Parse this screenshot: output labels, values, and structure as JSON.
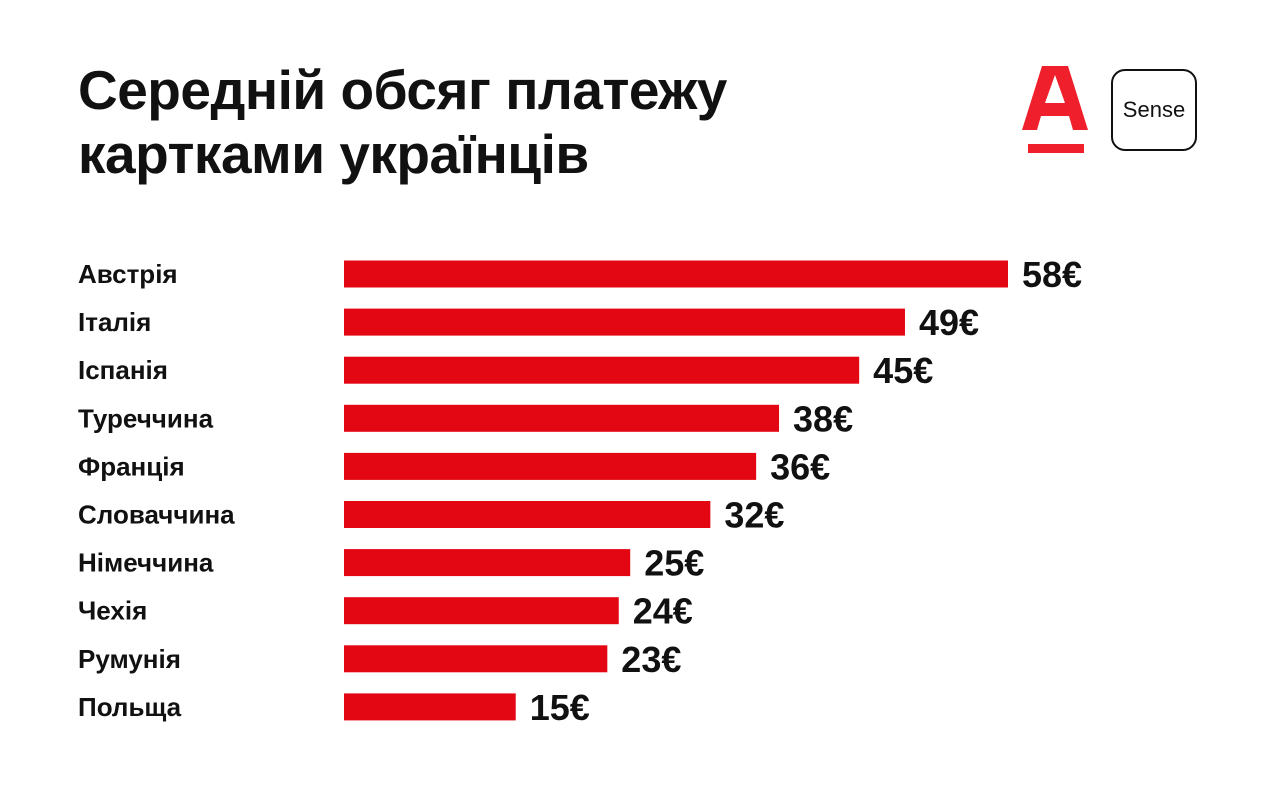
{
  "header": {
    "title_line1": "Середній обсяг платежу",
    "title_line2": "картками українців",
    "logo_icon": "alfa-bank-a-logo",
    "badge_label": "Sense"
  },
  "colors": {
    "bar": "#e30613",
    "text": "#111111",
    "logo": "#ef1f2c"
  },
  "chart_data": {
    "type": "bar",
    "orientation": "horizontal",
    "title": "Середній обсяг платежу картками українців",
    "categories": [
      "Австрія",
      "Італія",
      "Іспанія",
      "Туреччина",
      "Франція",
      "Словаччина",
      "Німеччина",
      "Чехія",
      "Румунія",
      "Польща"
    ],
    "values": [
      58,
      49,
      45,
      38,
      36,
      32,
      25,
      24,
      23,
      15
    ],
    "value_labels": [
      "58€",
      "49€",
      "45€",
      "38€",
      "36€",
      "32€",
      "25€",
      "24€",
      "23€",
      "15€"
    ],
    "unit": "€",
    "xlim": [
      0,
      58
    ],
    "grid": false,
    "legend": "none"
  }
}
